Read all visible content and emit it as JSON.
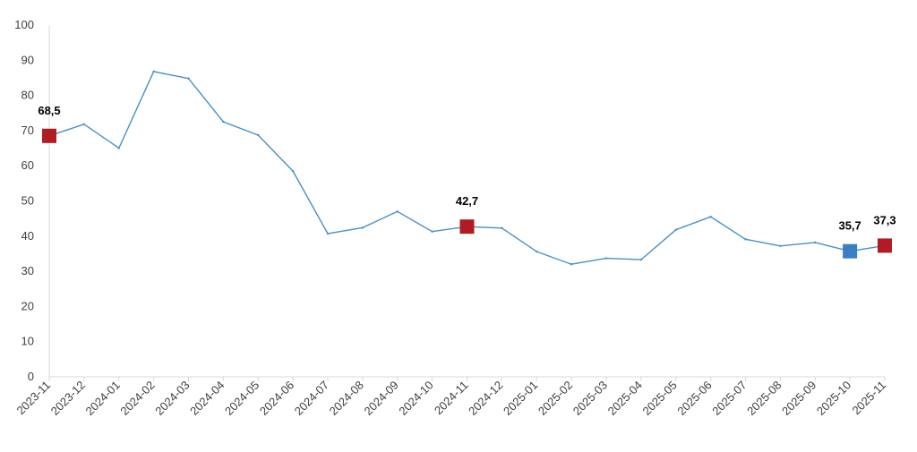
{
  "chart_data": {
    "type": "line",
    "categories": [
      "2023-11",
      "2023-12",
      "2024-01",
      "2024-02",
      "2024-03",
      "2024-04",
      "2024-05",
      "2024-06",
      "2024-07",
      "2024-08",
      "2024-09",
      "2024-10",
      "2024-11",
      "2024-12",
      "2025-01",
      "2025-02",
      "2025-03",
      "2025-04",
      "2025-05",
      "2025-06",
      "2025-07",
      "2025-08",
      "2025-09",
      "2025-10",
      "2025-11"
    ],
    "series": [
      {
        "values": [
          68.5,
          71.8,
          65.0,
          86.8,
          84.8,
          72.5,
          68.7,
          58.5,
          40.7,
          42.4,
          47.0,
          41.3,
          42.7,
          42.3,
          35.6,
          32.0,
          33.7,
          33.3,
          41.8,
          45.5,
          39.1,
          37.2,
          38.2,
          35.7,
          37.3
        ]
      }
    ],
    "ylim": [
      0,
      100
    ],
    "yticks": [
      0,
      10,
      20,
      30,
      40,
      50,
      60,
      70,
      80,
      90,
      100
    ],
    "ytick_labels": [
      "0",
      "10",
      "20",
      "30",
      "40",
      "50",
      "60",
      "70",
      "80",
      "90",
      "100"
    ],
    "grid": false,
    "line_color": "#4a90c4",
    "highlights": [
      {
        "index": 0,
        "label": "68,5",
        "color": "#b01c24"
      },
      {
        "index": 12,
        "label": "42,7",
        "color": "#b01c24"
      },
      {
        "index": 23,
        "label": "35,7",
        "color": "#3a7fc1"
      },
      {
        "index": 24,
        "label": "37,3",
        "color": "#b01c24"
      }
    ],
    "axis_color": "#d9d9d9"
  }
}
